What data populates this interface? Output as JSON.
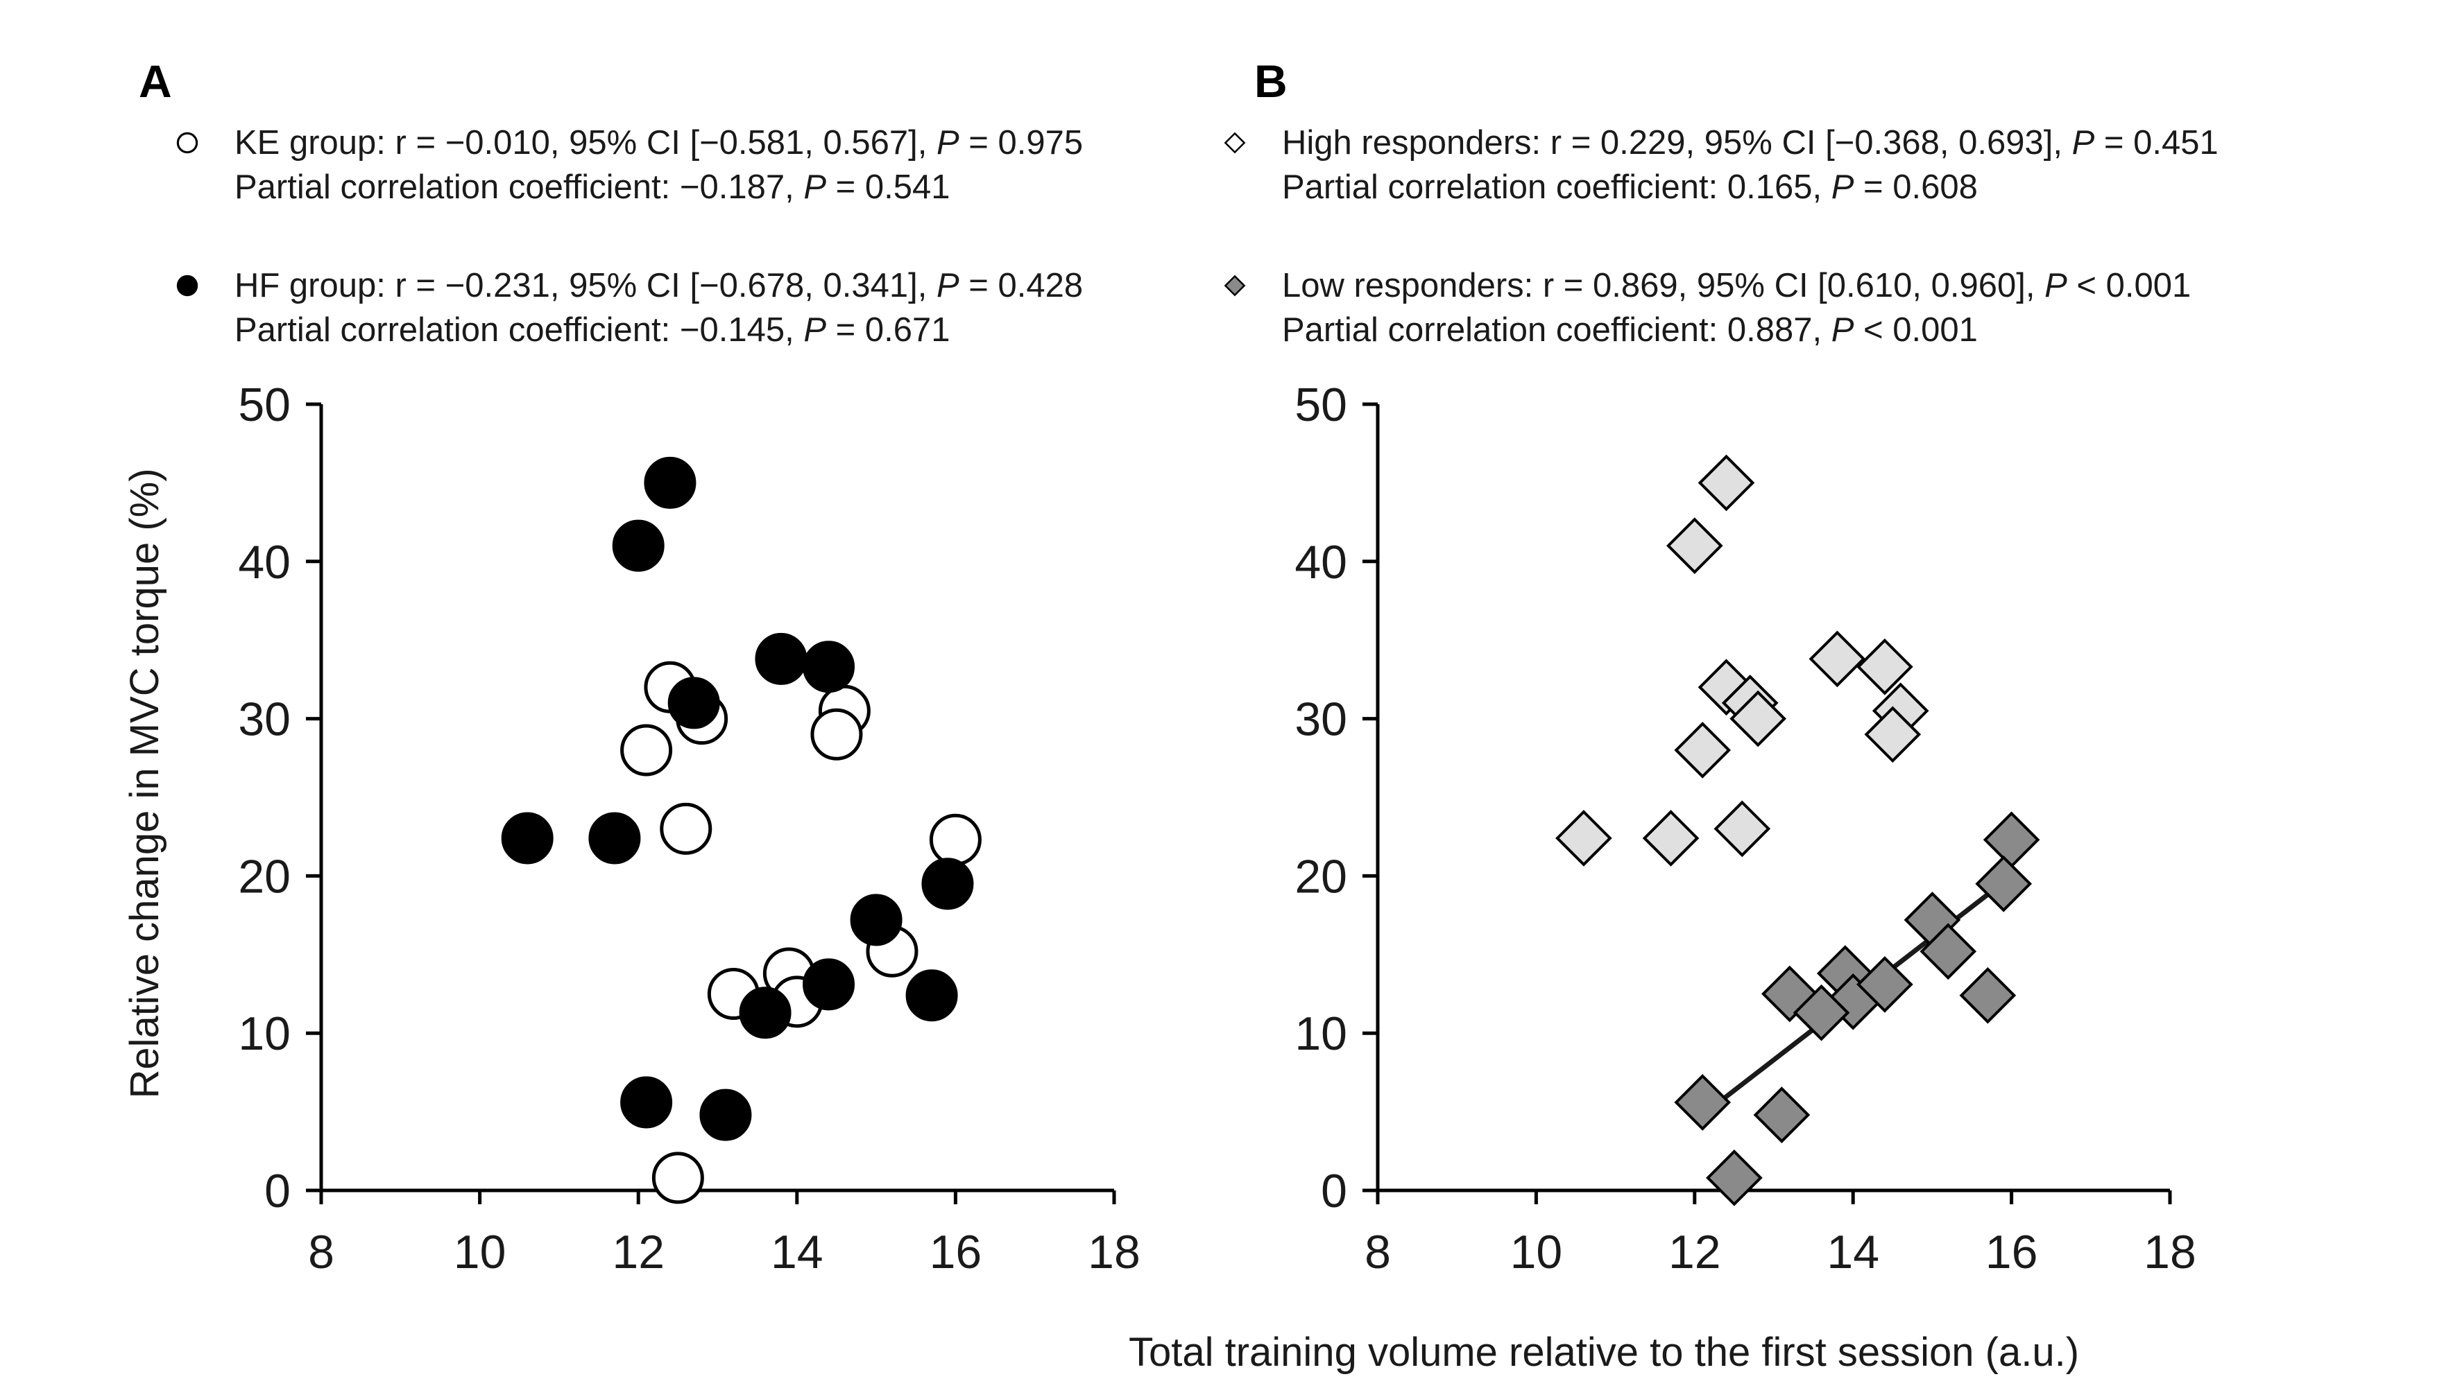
{
  "shared_xlabel": "Total training volume relative to the first session (a.u.)",
  "chart_data": [
    {
      "panel": "A",
      "type": "scatter",
      "ylabel": "Relative change in MVC torque (%)",
      "xlabel": "",
      "xlim": [
        8,
        18
      ],
      "ylim": [
        0,
        50
      ],
      "xticks": [
        "8",
        "10",
        "12",
        "14",
        "16",
        "18"
      ],
      "yticks": [
        "0",
        "10",
        "20",
        "30",
        "40",
        "50"
      ],
      "legend": [
        {
          "marker": "open-circle",
          "line1_prefix": "KE group: r = −0.010, 95% CI [−0.581, 0.567], ",
          "line1_p": "P",
          "line1_suffix": " = 0.975",
          "line2_prefix": "Partial correlation coefficient: −0.187, ",
          "line2_p": "P",
          "line2_suffix": " = 0.541"
        },
        {
          "marker": "filled-circle",
          "line1_prefix": "HF group: r = −0.231, 95% CI [−0.678, 0.341], ",
          "line1_p": "P",
          "line1_suffix": " = 0.428",
          "line2_prefix": "Partial correlation coefficient: −0.145, ",
          "line2_p": "P",
          "line2_suffix": " = 0.671"
        }
      ],
      "series": [
        {
          "name": "KE group",
          "marker": "open-circle",
          "color": "#ffffff",
          "stroke": "#000000",
          "points": [
            [
              12.4,
              32
            ],
            [
              12.1,
              28
            ],
            [
              12.8,
              30
            ],
            [
              12.6,
              23
            ],
            [
              13.2,
              12.5
            ],
            [
              13.9,
              13.8
            ],
            [
              14.0,
              12
            ],
            [
              14.6,
              30.5
            ],
            [
              14.5,
              29
            ],
            [
              15.2,
              15.2
            ],
            [
              16.0,
              22.3
            ],
            [
              12.5,
              0.8
            ]
          ]
        },
        {
          "name": "HF group",
          "marker": "filled-circle",
          "color": "#000000",
          "stroke": "#000000",
          "points": [
            [
              12.4,
              45
            ],
            [
              12.0,
              41
            ],
            [
              13.8,
              33.8
            ],
            [
              14.4,
              33.3
            ],
            [
              12.7,
              31
            ],
            [
              10.6,
              22.4
            ],
            [
              11.7,
              22.4
            ],
            [
              15.0,
              17.2
            ],
            [
              15.9,
              19.5
            ],
            [
              15.7,
              12.4
            ],
            [
              14.4,
              13.1
            ],
            [
              13.6,
              11.3
            ],
            [
              12.1,
              5.6
            ],
            [
              13.1,
              4.8
            ]
          ]
        }
      ]
    },
    {
      "panel": "B",
      "type": "scatter",
      "ylabel": "",
      "xlabel": "",
      "xlim": [
        8,
        18
      ],
      "ylim": [
        0,
        50
      ],
      "xticks": [
        "8",
        "10",
        "12",
        "14",
        "16",
        "18"
      ],
      "yticks": [
        "0",
        "10",
        "20",
        "30",
        "40",
        "50"
      ],
      "legend": [
        {
          "marker": "open-diamond",
          "line1_prefix": "High responders: r = 0.229, 95% CI [−0.368, 0.693], ",
          "line1_p": "P",
          "line1_suffix": " = 0.451",
          "line2_prefix": "Partial correlation coefficient: 0.165, ",
          "line2_p": "P",
          "line2_suffix": " = 0.608"
        },
        {
          "marker": "gray-diamond",
          "line1_prefix": "Low responders: r = 0.869, 95% CI [0.610, 0.960], ",
          "line1_p": "P",
          "line1_suffix": " < 0.001",
          "line2_prefix": "Partial correlation coefficient: 0.887, ",
          "line2_p": "P",
          "line2_suffix": " < 0.001"
        }
      ],
      "series": [
        {
          "name": "High responders",
          "marker": "diamond",
          "color": "#e0e0e0",
          "stroke": "#000000",
          "points": [
            [
              12.4,
              45
            ],
            [
              12.0,
              41
            ],
            [
              13.8,
              33.8
            ],
            [
              14.4,
              33.3
            ],
            [
              12.4,
              32
            ],
            [
              12.7,
              31
            ],
            [
              12.8,
              30
            ],
            [
              14.6,
              30.5
            ],
            [
              14.5,
              29
            ],
            [
              12.1,
              28
            ],
            [
              10.6,
              22.4
            ],
            [
              11.7,
              22.4
            ],
            [
              12.6,
              23
            ]
          ]
        },
        {
          "name": "Low responders",
          "marker": "diamond",
          "color": "#8a8a8a",
          "stroke": "#000000",
          "points": [
            [
              16.0,
              22.3
            ],
            [
              15.9,
              19.5
            ],
            [
              15.0,
              17.2
            ],
            [
              15.2,
              15.2
            ],
            [
              13.9,
              13.8
            ],
            [
              14.0,
              12
            ],
            [
              14.4,
              13.1
            ],
            [
              13.2,
              12.5
            ],
            [
              13.6,
              11.3
            ],
            [
              15.7,
              12.4
            ],
            [
              12.1,
              5.6
            ],
            [
              13.1,
              4.8
            ],
            [
              12.5,
              0.8
            ]
          ]
        }
      ],
      "regression_line": {
        "series": "Low responders",
        "x": [
          12.1,
          15.9
        ],
        "y": [
          4.8,
          19.6
        ]
      }
    }
  ]
}
